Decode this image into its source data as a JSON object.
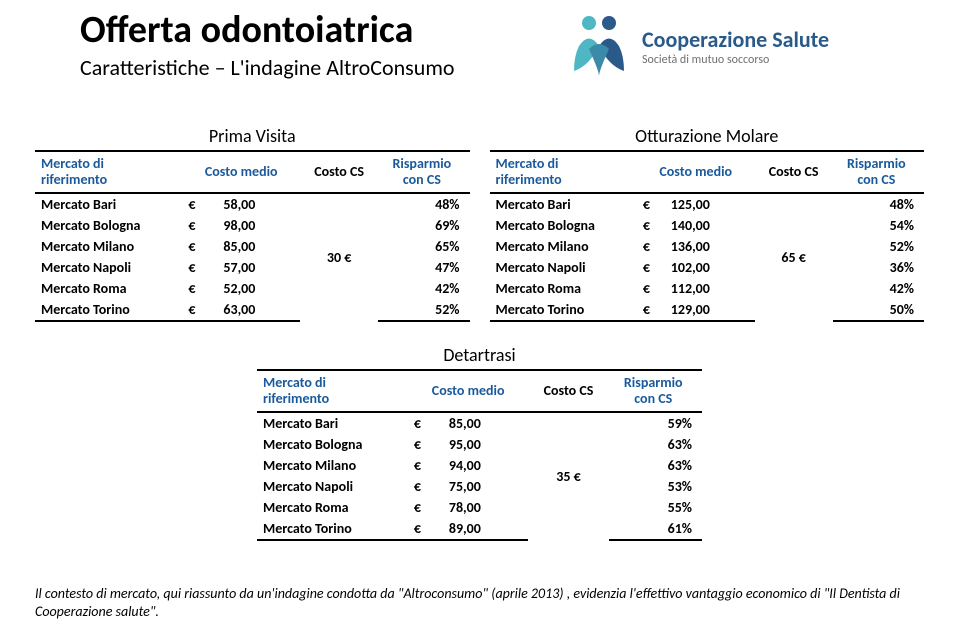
{
  "header": {
    "title": "Offerta odontoiatrica",
    "subtitle": "Caratteristiche – L'indagine AltroConsumo",
    "logo_line1": "Cooperazione Salute",
    "logo_line2": "Società di mutuo soccorso",
    "logo_colors": {
      "teal": "#4fb6c4",
      "blue": "#2a5a8a",
      "gray": "#6f7072"
    }
  },
  "columns": {
    "mercato": "Mercato di riferimento",
    "costo_medio": "Costo medio",
    "costo_cs": "Costo CS",
    "risparmio": "Risparmio con CS"
  },
  "tables": {
    "prima_visita": {
      "title": "Prima Visita",
      "costo_cs": "30 €",
      "rows": [
        {
          "m": "Mercato Bari",
          "cm": "58,00",
          "r": "48%"
        },
        {
          "m": "Mercato Bologna",
          "cm": "98,00",
          "r": "69%"
        },
        {
          "m": "Mercato Milano",
          "cm": "85,00",
          "r": "65%"
        },
        {
          "m": "Mercato Napoli",
          "cm": "57,00",
          "r": "47%"
        },
        {
          "m": "Mercato Roma",
          "cm": "52,00",
          "r": "42%"
        },
        {
          "m": "Mercato Torino",
          "cm": "63,00",
          "r": "52%"
        }
      ]
    },
    "otturazione": {
      "title": "Otturazione Molare",
      "costo_cs": "65 €",
      "rows": [
        {
          "m": "Mercato Bari",
          "cm": "125,00",
          "r": "48%"
        },
        {
          "m": "Mercato Bologna",
          "cm": "140,00",
          "r": "54%"
        },
        {
          "m": "Mercato Milano",
          "cm": "136,00",
          "r": "52%"
        },
        {
          "m": "Mercato Napoli",
          "cm": "102,00",
          "r": "36%"
        },
        {
          "m": "Mercato Roma",
          "cm": "112,00",
          "r": "42%"
        },
        {
          "m": "Mercato Torino",
          "cm": "129,00",
          "r": "50%"
        }
      ]
    },
    "detartrasi": {
      "title": "Detartrasi",
      "costo_cs": "35 €",
      "rows": [
        {
          "m": "Mercato Bari",
          "cm": "85,00",
          "r": "59%"
        },
        {
          "m": "Mercato Bologna",
          "cm": "95,00",
          "r": "63%"
        },
        {
          "m": "Mercato Milano",
          "cm": "94,00",
          "r": "63%"
        },
        {
          "m": "Mercato Napoli",
          "cm": "75,00",
          "r": "53%"
        },
        {
          "m": "Mercato Roma",
          "cm": "78,00",
          "r": "55%"
        },
        {
          "m": "Mercato Torino",
          "cm": "89,00",
          "r": "61%"
        }
      ]
    }
  },
  "footer": {
    "text": "Il contesto di mercato, qui riassunto da un'indagine condotta da \"Altroconsumo\" (aprile 2013) , evidenzia l'effettivo vantaggio economico di \"Il Dentista di Cooperazione salute\"."
  },
  "style": {
    "title_color": "#000000",
    "header_blue": "#1a5a9c",
    "border_color": "#000000",
    "font": "Calibri"
  }
}
